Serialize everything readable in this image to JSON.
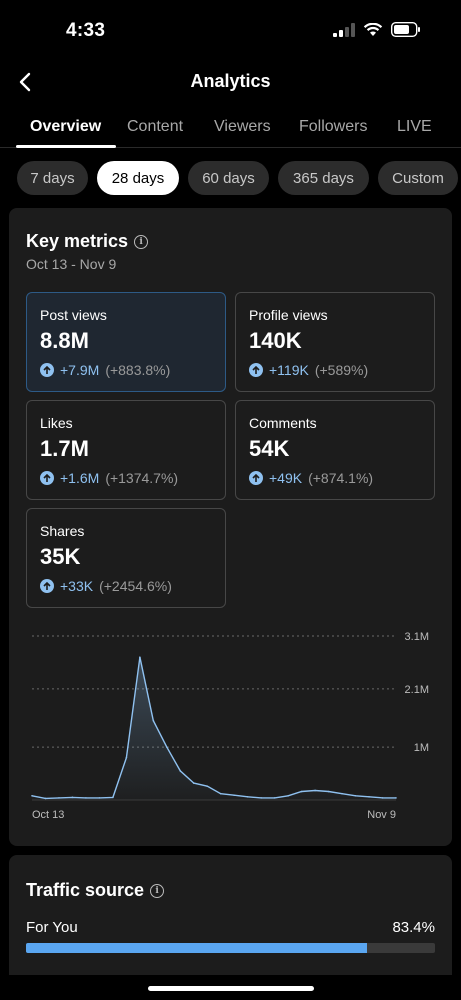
{
  "status": {
    "time": "4:33"
  },
  "header": {
    "title": "Analytics"
  },
  "tabs": [
    {
      "label": "Overview",
      "active": true
    },
    {
      "label": "Content"
    },
    {
      "label": "Viewers"
    },
    {
      "label": "Followers"
    },
    {
      "label": "LIVE"
    }
  ],
  "ranges": [
    {
      "label": "7 days"
    },
    {
      "label": "28 days",
      "active": true
    },
    {
      "label": "60 days"
    },
    {
      "label": "365 days"
    },
    {
      "label": "Custom"
    }
  ],
  "key_metrics": {
    "title": "Key metrics",
    "date_range": "Oct 13 - Nov 9",
    "metrics": [
      {
        "label": "Post views",
        "value": "8.8M",
        "delta": "+7.9M",
        "pct": "(+883.8%)"
      },
      {
        "label": "Profile views",
        "value": "140K",
        "delta": "+119K",
        "pct": "(+589%)"
      },
      {
        "label": "Likes",
        "value": "1.7M",
        "delta": "+1.6M",
        "pct": "(+1374.7%)"
      },
      {
        "label": "Comments",
        "value": "54K",
        "delta": "+49K",
        "pct": "(+874.1%)"
      },
      {
        "label": "Shares",
        "value": "35K",
        "delta": "+33K",
        "pct": "(+2454.6%)"
      }
    ]
  },
  "chart_data": {
    "type": "area",
    "x_start_label": "Oct 13",
    "x_end_label": "Nov 9",
    "y_ticks": [
      "1M",
      "2.1M",
      "3.1M"
    ],
    "y_tick_values": [
      1000000,
      2100000,
      3100000
    ],
    "ylim": [
      0,
      3100000
    ],
    "grid": true,
    "color": "#8fc1f0",
    "values": [
      80000,
      30000,
      40000,
      50000,
      40000,
      40000,
      50000,
      800000,
      2700000,
      1500000,
      1000000,
      550000,
      320000,
      260000,
      120000,
      90000,
      60000,
      40000,
      40000,
      80000,
      160000,
      180000,
      160000,
      120000,
      80000,
      60000,
      40000,
      40000
    ]
  },
  "traffic": {
    "title": "Traffic source",
    "items": [
      {
        "label": "For You",
        "value": "83.4%",
        "fraction": 0.834
      }
    ]
  }
}
